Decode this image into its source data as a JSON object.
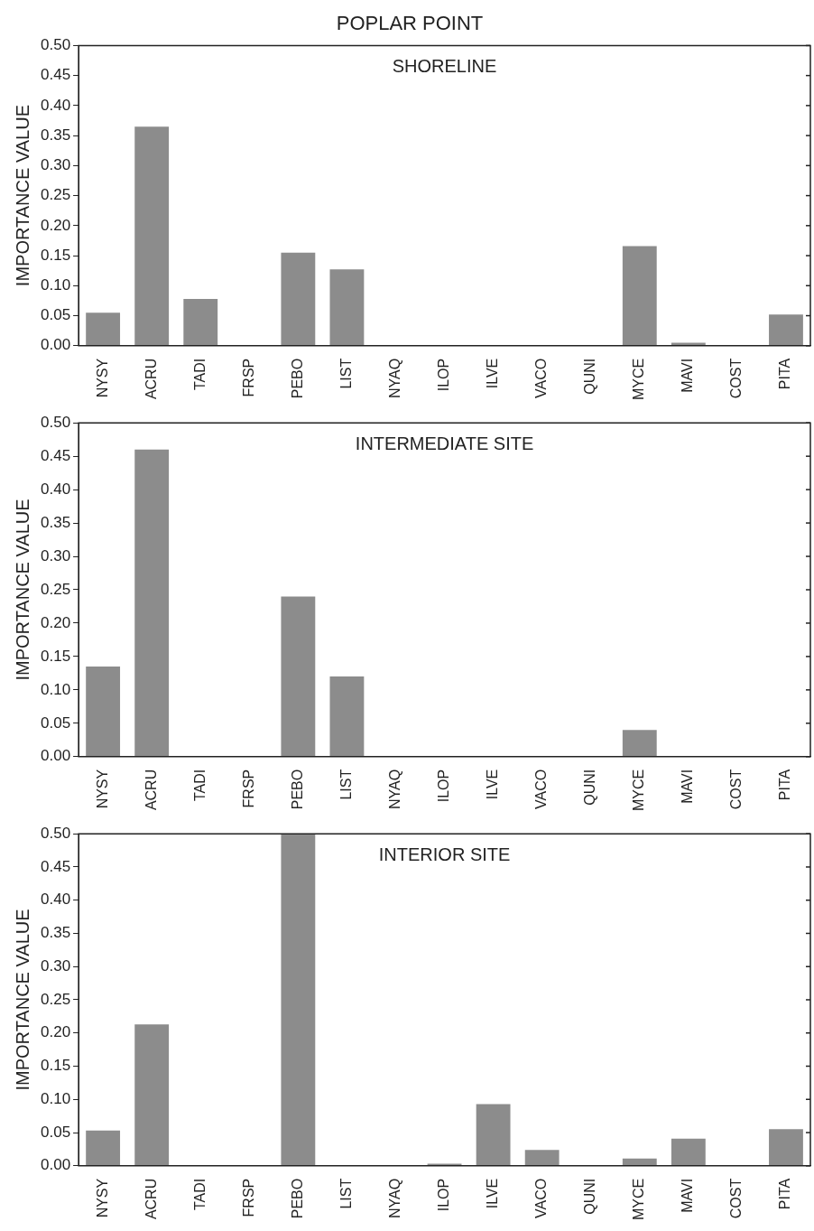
{
  "chart_data": [
    {
      "type": "bar",
      "title": "POPLAR POINT",
      "annotations": [
        "SHORELINE"
      ],
      "ylabel": "IMPORTANCE VALUE",
      "color": "#8c8c8c",
      "grid": false,
      "categories": [
        "NYSY",
        "ACRU",
        "TADI",
        "FRSP",
        "PEBO",
        "LIST",
        "NYAQ",
        "ILOP",
        "ILVE",
        "VACO",
        "QUNI",
        "MYCE",
        "MAVI",
        "COST",
        "PITA"
      ],
      "values": [
        0.055,
        0.365,
        0.078,
        0,
        0.155,
        0.127,
        0,
        0,
        0,
        0,
        0,
        0.166,
        0.005,
        0,
        0.052
      ],
      "ylim": [
        0,
        0.5
      ],
      "yticks": [
        {
          "value": 0,
          "label": "0.00"
        },
        {
          "value": 0.05,
          "label": "0.05"
        },
        {
          "value": 0.1,
          "label": "0.10"
        },
        {
          "value": 0.15,
          "label": "0.15"
        },
        {
          "value": 0.2,
          "label": "0.20"
        },
        {
          "value": 0.25,
          "label": "0.25"
        },
        {
          "value": 0.3,
          "label": "0.30"
        },
        {
          "value": 0.35,
          "label": "0.35"
        },
        {
          "value": 0.4,
          "label": "0.40"
        },
        {
          "value": 0.45,
          "label": "0.45"
        },
        {
          "value": 0.5,
          "label": "0.50"
        }
      ]
    },
    {
      "type": "bar",
      "annotations": [
        "INTERMEDIATE SITE"
      ],
      "ylabel": "IMPORTANCE VALUE",
      "color": "#8c8c8c",
      "grid": false,
      "categories": [
        "NYSY",
        "ACRU",
        "TADI",
        "FRSP",
        "PEBO",
        "LIST",
        "NYAQ",
        "ILOP",
        "ILVE",
        "VACO",
        "QUNI",
        "MYCE",
        "MAVI",
        "COST",
        "PITA"
      ],
      "values": [
        0.135,
        0.46,
        0,
        0,
        0.24,
        0.12,
        0,
        0,
        0,
        0,
        0,
        0.04,
        0,
        0,
        0
      ],
      "ylim": [
        0,
        0.5
      ],
      "yticks": [
        {
          "value": 0,
          "label": "0.00"
        },
        {
          "value": 0.05,
          "label": "0.05"
        },
        {
          "value": 0.1,
          "label": "0.10"
        },
        {
          "value": 0.15,
          "label": "0.15"
        },
        {
          "value": 0.2,
          "label": "0.20"
        },
        {
          "value": 0.25,
          "label": "0.25"
        },
        {
          "value": 0.3,
          "label": "0.30"
        },
        {
          "value": 0.35,
          "label": "0.35"
        },
        {
          "value": 0.4,
          "label": "0.40"
        },
        {
          "value": 0.45,
          "label": "0.45"
        },
        {
          "value": 0.5,
          "label": "0.50"
        }
      ]
    },
    {
      "type": "bar",
      "annotations": [
        "INTERIOR SITE"
      ],
      "ylabel": "IMPORTANCE VALUE",
      "color": "#8c8c8c",
      "grid": false,
      "categories": [
        "NYSY",
        "ACRU",
        "TADI",
        "FRSP",
        "PEBO",
        "LIST",
        "NYAQ",
        "ILOP",
        "ILVE",
        "VACO",
        "QUNI",
        "MYCE",
        "MAVI",
        "COST",
        "PITA"
      ],
      "values": [
        0.053,
        0.213,
        0,
        0,
        0.5,
        0,
        0,
        0.003,
        0.093,
        0.024,
        0,
        0.011,
        0.041,
        0,
        0.055
      ],
      "ylim": [
        0,
        0.5
      ],
      "yticks": [
        {
          "value": 0,
          "label": "0.00"
        },
        {
          "value": 0.05,
          "label": "0.05"
        },
        {
          "value": 0.1,
          "label": "0.10"
        },
        {
          "value": 0.15,
          "label": "0.15"
        },
        {
          "value": 0.2,
          "label": "0.20"
        },
        {
          "value": 0.25,
          "label": "0.25"
        },
        {
          "value": 0.3,
          "label": "0.30"
        },
        {
          "value": 0.35,
          "label": "0.35"
        },
        {
          "value": 0.4,
          "label": "0.40"
        },
        {
          "value": 0.45,
          "label": "0.45"
        },
        {
          "value": 0.5,
          "label": "0.50"
        }
      ]
    }
  ]
}
